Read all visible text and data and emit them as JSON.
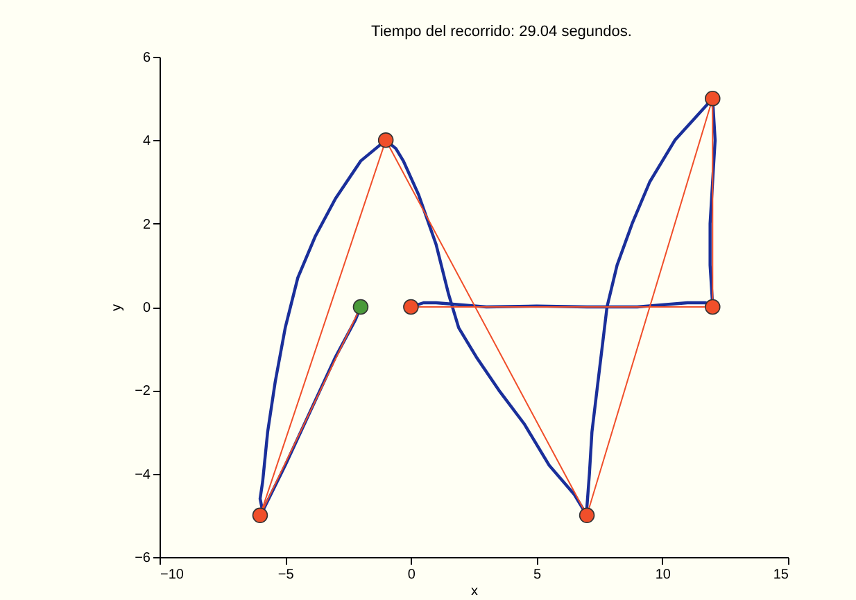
{
  "chart_data": {
    "type": "line",
    "title": "Tiempo del recorrido: 29.04 segundos.",
    "xlabel": "x",
    "ylabel": "y",
    "xlim": [
      -10,
      15
    ],
    "ylim": [
      -6,
      6
    ],
    "xticks": [
      {
        "value": -10,
        "label": "−10"
      },
      {
        "value": -5,
        "label": "−5"
      },
      0,
      5,
      10,
      15
    ],
    "yticks": [
      {
        "value": -6,
        "label": "−6"
      },
      {
        "value": -4,
        "label": "−4"
      },
      {
        "value": -2,
        "label": "−2"
      },
      0,
      2,
      4,
      6
    ],
    "grid": false,
    "series": [
      {
        "marker": "none",
        "color": "#1a2f9a",
        "x": [
          0,
          0.5,
          1,
          2,
          3,
          5,
          7,
          9,
          10,
          11,
          11.7,
          12,
          11.9,
          11.9,
          12,
          12.1,
          12,
          10.5,
          9.5,
          8.8,
          8.2,
          7.8,
          7.6,
          7.4,
          7.2,
          7.1,
          7,
          7,
          6.5,
          5.5,
          4.5,
          3.5,
          2.6,
          1.9,
          1.5,
          1,
          0.3,
          -0.3,
          -0.6,
          -1,
          -2,
          -3,
          -3.8,
          -4.5,
          -5,
          -5.4,
          -5.7,
          -5.9,
          -6,
          -5.9,
          -5,
          -4,
          -3,
          -2.2,
          -2
        ],
        "values": [
          0,
          0.1,
          0.1,
          0.05,
          0,
          0.02,
          0,
          0,
          0.05,
          0.1,
          0.1,
          0.05,
          1,
          2,
          3,
          4,
          5,
          4,
          3,
          2,
          1,
          0,
          -1,
          -2,
          -3,
          -4,
          -4.8,
          -5,
          -4.5,
          -3.8,
          -2.8,
          -2,
          -1.2,
          -0.5,
          0.3,
          1.5,
          2.7,
          3.5,
          3.8,
          4,
          3.5,
          2.6,
          1.7,
          0.7,
          -0.5,
          -1.8,
          -3,
          -4.2,
          -4.6,
          -4.9,
          -3.8,
          -2.5,
          -1.2,
          -0.3,
          0
        ]
      },
      {
        "marker": "none",
        "color": "#f04f2a",
        "x": [
          0,
          12,
          12,
          7,
          -1,
          -6,
          -2
        ],
        "values": [
          0,
          0,
          5,
          -5,
          4,
          -5,
          0
        ]
      },
      {
        "type": "scatter",
        "marker": "circle",
        "color": "#f04f2a",
        "x": [
          0,
          12,
          12,
          7,
          -1,
          -6
        ],
        "values": [
          0,
          0,
          5,
          -5,
          4,
          -5
        ]
      },
      {
        "type": "scatter",
        "marker": "circle",
        "color": "#4a9a3a",
        "x": [
          -2
        ],
        "values": [
          0
        ]
      }
    ]
  }
}
